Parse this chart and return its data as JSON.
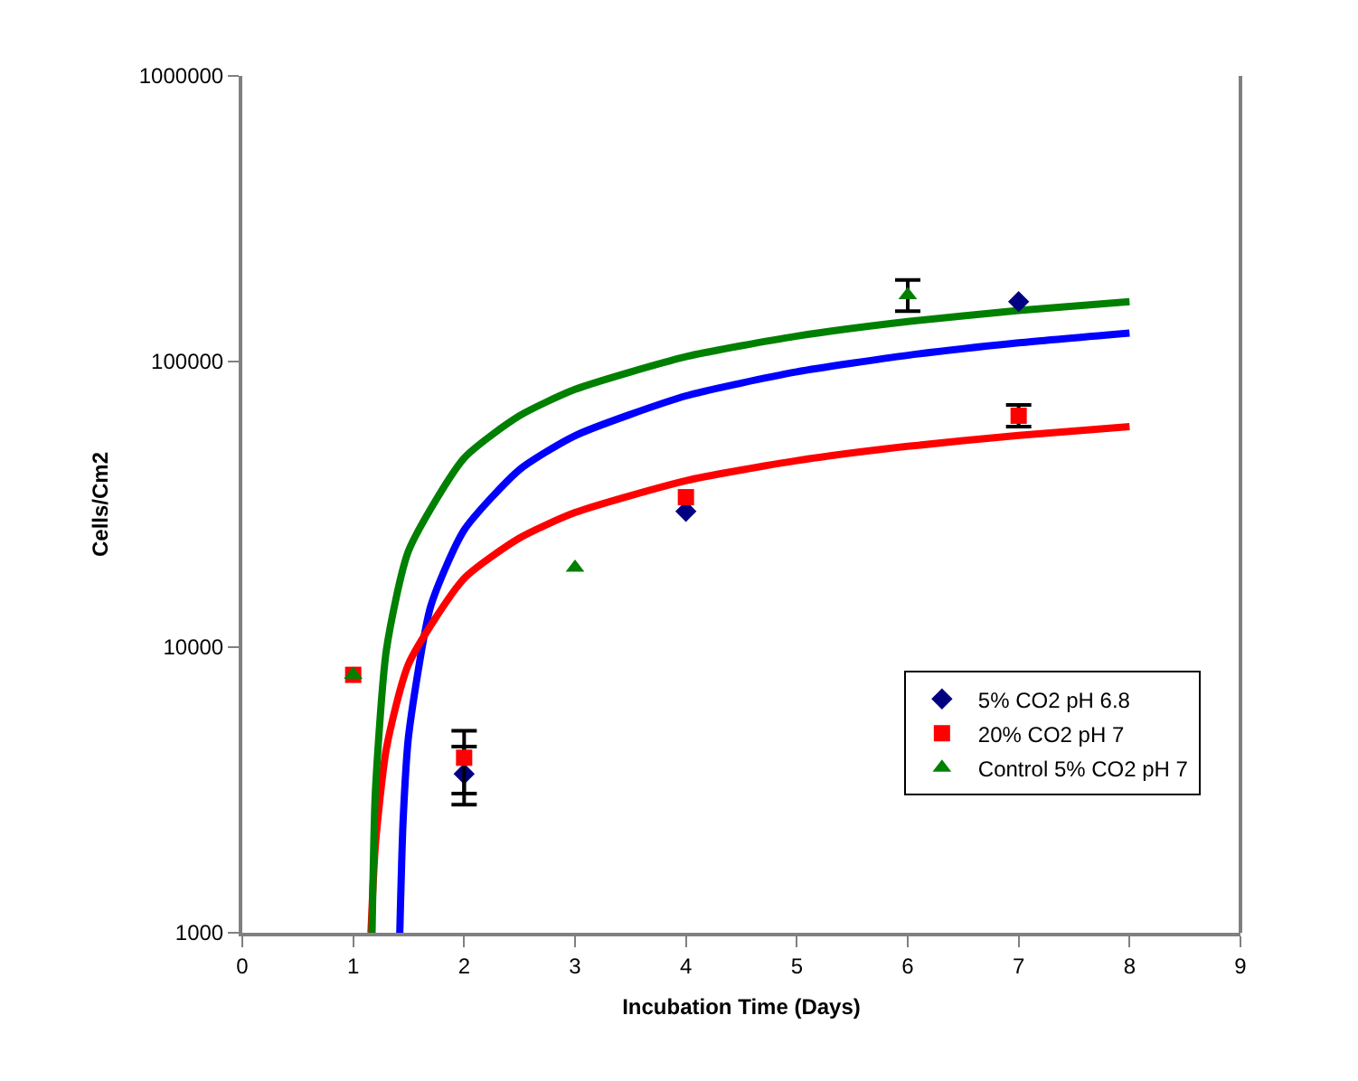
{
  "chart_data": {
    "type": "scatter",
    "xlabel": "Incubation Time (Days)",
    "ylabel": "Cells/Cm2",
    "log": "y",
    "grid": false,
    "legend": "bottom right",
    "xlim": [
      0,
      9
    ],
    "xticks": [
      0,
      1,
      2,
      3,
      4,
      5,
      6,
      7,
      8,
      9
    ],
    "ylim": [
      1000,
      1000000
    ],
    "yticks": [
      1000,
      10000,
      100000,
      1000000
    ],
    "series": [
      {
        "name": "5% CO2 pH 6.8",
        "type": "scatter",
        "marker": "diamond",
        "color": "#000080",
        "x": [
          2,
          4,
          7
        ],
        "values": [
          3600,
          29900,
          162000
        ],
        "errors": [
          [
            2810,
            4490
          ],
          null,
          null
        ]
      },
      {
        "name": "20% CO2 pH 7",
        "type": "scatter",
        "marker": "square",
        "color": "#ff0000",
        "x": [
          1,
          2,
          4,
          7
        ],
        "values": [
          8000,
          4100,
          33500,
          64600
        ],
        "errors": [
          null,
          [
            3070,
            5100
          ],
          null,
          [
            59200,
            70500
          ]
        ]
      },
      {
        "name": "Control 5% CO2 pH 7",
        "type": "scatter",
        "marker": "triangle",
        "color": "#008000",
        "x": [
          1,
          3,
          6
        ],
        "values": [
          8000,
          19000,
          171000
        ],
        "errors": [
          null,
          null,
          [
            150000,
            193000
          ]
        ]
      },
      {
        "type": "line",
        "marker": "none",
        "color": "#0000ff",
        "x": [
          1.42,
          1.45,
          1.5,
          1.7,
          2,
          2.5,
          3,
          4,
          5,
          6,
          7,
          8
        ],
        "values": [
          1000,
          2470,
          4920,
          13960,
          25700,
          41850,
          55000,
          75800,
          92000,
          105150,
          116300,
          125900
        ]
      },
      {
        "type": "line",
        "marker": "none",
        "color": "#ff0000",
        "x": [
          1.16,
          1.2,
          1.3,
          1.5,
          2,
          2.5,
          3,
          4,
          5,
          6,
          7,
          8
        ],
        "values": [
          1000,
          2030,
          4440,
          8750,
          17400,
          24100,
          29600,
          38270,
          44980,
          50470,
          55100,
          59130
        ]
      },
      {
        "type": "line",
        "marker": "none",
        "color": "#008000",
        "x": [
          1.17,
          1.2,
          1.3,
          1.5,
          2,
          2.5,
          3,
          4,
          5,
          6,
          7,
          8
        ],
        "values": [
          1000,
          3120,
          9830,
          21800,
          45900,
          64600,
          79900,
          104000,
          122700,
          138000,
          150900,
          162100
        ]
      }
    ]
  }
}
